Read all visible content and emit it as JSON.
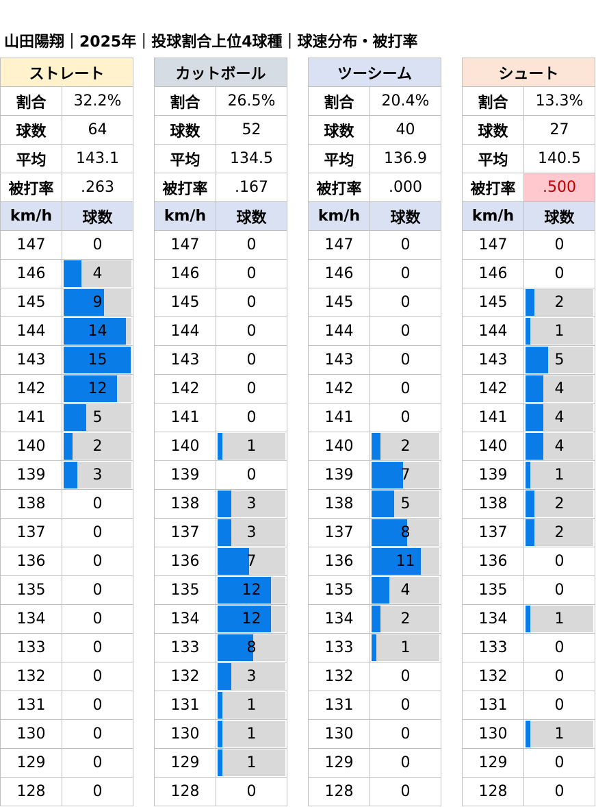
{
  "title": "山田陽翔｜2025年｜投球割合上位4球種｜球速分布・被打率",
  "labels": {
    "ratio": "割合",
    "count": "球数",
    "avg": "平均",
    "avg_against": "被打率",
    "unit_speed": "km/h",
    "unit_count": "球数"
  },
  "colors": {
    "bar": "#0a7ce8",
    "bar_track": "#d9d9d9",
    "highlight_bad": "#ffc7ce",
    "highlight_bad_text": "#c00000"
  },
  "chart_data": {
    "type": "table",
    "speeds": [
      147,
      146,
      145,
      144,
      143,
      142,
      141,
      140,
      139,
      138,
      137,
      136,
      135,
      134,
      133,
      132,
      131,
      130,
      129,
      128
    ],
    "bar_max": 15,
    "pitches": [
      {
        "name": "ストレート",
        "header_color": "#fff2cc",
        "ratio": "32.2%",
        "count": "64",
        "avg_speed": "143.1",
        "avg_against": ".263",
        "avg_against_highlight": false,
        "counts": [
          0,
          4,
          9,
          14,
          15,
          12,
          5,
          2,
          3,
          0,
          0,
          0,
          0,
          0,
          0,
          0,
          0,
          0,
          0,
          0
        ]
      },
      {
        "name": "カットボール",
        "header_color": "#d6dce4",
        "ratio": "26.5%",
        "count": "52",
        "avg_speed": "134.5",
        "avg_against": ".167",
        "avg_against_highlight": false,
        "counts": [
          0,
          0,
          0,
          0,
          0,
          0,
          0,
          1,
          0,
          3,
          3,
          7,
          12,
          12,
          8,
          3,
          1,
          1,
          1,
          0
        ]
      },
      {
        "name": "ツーシーム",
        "header_color": "#dae1f2",
        "ratio": "20.4%",
        "count": "40",
        "avg_speed": "136.9",
        "avg_against": ".000",
        "avg_against_highlight": false,
        "counts": [
          0,
          0,
          0,
          0,
          0,
          0,
          0,
          2,
          7,
          5,
          8,
          11,
          4,
          2,
          1,
          0,
          0,
          0,
          0,
          0
        ]
      },
      {
        "name": "シュート",
        "header_color": "#fce4d6",
        "ratio": "13.3%",
        "count": "27",
        "avg_speed": "140.5",
        "avg_against": ".500",
        "avg_against_highlight": true,
        "counts": [
          0,
          0,
          2,
          1,
          5,
          4,
          4,
          4,
          1,
          2,
          2,
          0,
          0,
          1,
          0,
          0,
          0,
          1,
          0,
          0
        ]
      }
    ]
  }
}
